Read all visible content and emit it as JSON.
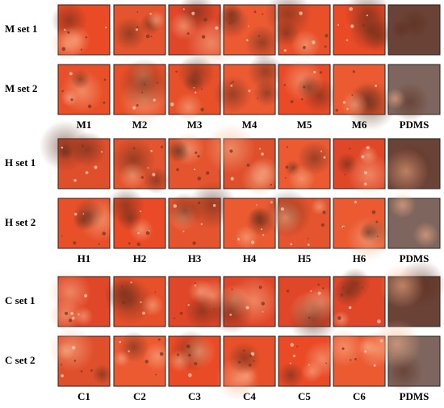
{
  "groups": [
    {
      "rows": [
        "M set 1",
        "M set 2"
      ],
      "columns": [
        "M1",
        "M2",
        "M3",
        "M4",
        "M5",
        "M6",
        "PDMS"
      ]
    },
    {
      "rows": [
        "H set 1",
        "H set 2"
      ],
      "columns": [
        "H1",
        "H2",
        "H3",
        "H4",
        "H5",
        "H6",
        "PDMS"
      ]
    },
    {
      "rows": [
        "C set 1",
        "C set 2"
      ],
      "columns": [
        "C1",
        "C2",
        "C3",
        "C4",
        "C5",
        "C6",
        "PDMS"
      ]
    }
  ]
}
